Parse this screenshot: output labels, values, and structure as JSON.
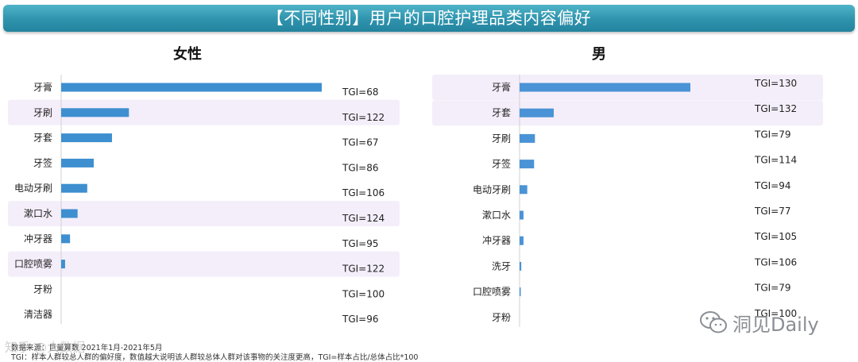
{
  "header": {
    "title": "【不同性别】用户的口腔护理品类内容偏好"
  },
  "colors": {
    "bar": "#3d8fd0",
    "highlight": "#f4eefa",
    "title_bg": "#2f93ad"
  },
  "chart_data": [
    {
      "type": "bar",
      "orientation": "horizontal",
      "title": "女性",
      "categories": [
        "牙膏",
        "牙刷",
        "牙套",
        "牙签",
        "电动牙刷",
        "漱口水",
        "冲牙器",
        "口腔喷雾",
        "牙粉",
        "清洁器"
      ],
      "values": [
        100,
        26,
        19.5,
        12.5,
        10,
        6.3,
        3.4,
        1.5,
        0,
        0
      ],
      "tgi_labels": [
        "TGI=68",
        "TGI=122",
        "TGI=67",
        "TGI=86",
        "TGI=106",
        "TGI=124",
        "TGI=95",
        "TGI=122",
        "TGI=100",
        "TGI=96"
      ],
      "highlighted_rows": [
        1,
        5,
        7
      ],
      "xlim": [
        0,
        100
      ]
    },
    {
      "type": "bar",
      "orientation": "horizontal",
      "title": "男",
      "categories": [
        "牙膏",
        "牙套",
        "牙刷",
        "牙签",
        "电动牙刷",
        "漱口水",
        "冲牙器",
        "洗牙",
        "口腔喷雾",
        "牙粉"
      ],
      "values": [
        100,
        20,
        9,
        8.5,
        4.5,
        2.3,
        2.3,
        1,
        0.5,
        0
      ],
      "tgi_labels": [
        "TGI=130",
        "TGI=132",
        "TGI=79",
        "TGI=114",
        "TGI=94",
        "TGI=77",
        "TGI=105",
        "TGI=106",
        "TGI=79",
        "TGI=100"
      ],
      "highlighted_rows": [
        0,
        1
      ],
      "xlim": [
        0,
        100
      ]
    }
  ],
  "notes": {
    "source": "数据来源：巨量算数 2021年1月-2021年5月",
    "tgi_def": "TGI：样本人群较总人群的偏好度，数值越大说明该人群较总体人群对该事物的关注度更高，TGI=样本占比/总体占比*100"
  },
  "watermark": {
    "text": "洞见Daily",
    "left_text": "知乎 @大数据"
  }
}
